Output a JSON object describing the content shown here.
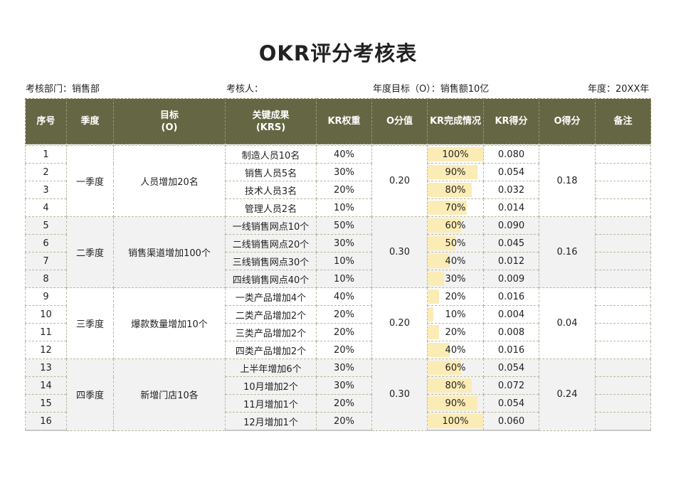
{
  "title": "OKR评分考核表",
  "meta": {
    "dept": "考核部门：销售部",
    "assessor": "考核人：",
    "goal": "年度目标（O）：销售额10亿",
    "year": "年度：20XX年"
  },
  "headers": {
    "seq": "序号",
    "quarter": "季度",
    "objective_line1": "目标",
    "objective_line2": "(O)",
    "krs_line1": "关键成果",
    "krs_line2": "(KRS)",
    "weight": "KR权重",
    "o_score": "O分值",
    "completion": "KR完成情况",
    "kr_score": "KR得分",
    "o_result": "O得分",
    "note": "备注"
  },
  "groups": [
    {
      "quarter": "一季度",
      "objective": "人员增加20名",
      "o_score": "0.20",
      "o_result": "0.18",
      "rows": [
        {
          "seq": "1",
          "kr": "制造人员10名",
          "weight": "40%",
          "completion": "100%",
          "pct": 100,
          "kr_score": "0.080",
          "note": ""
        },
        {
          "seq": "2",
          "kr": "销售人员5名",
          "weight": "30%",
          "completion": "90%",
          "pct": 90,
          "kr_score": "0.054",
          "note": ""
        },
        {
          "seq": "3",
          "kr": "技术人员3名",
          "weight": "20%",
          "completion": "80%",
          "pct": 80,
          "kr_score": "0.032",
          "note": ""
        },
        {
          "seq": "4",
          "kr": "管理人员2名",
          "weight": "10%",
          "completion": "70%",
          "pct": 70,
          "kr_score": "0.014",
          "note": ""
        }
      ]
    },
    {
      "quarter": "二季度",
      "objective": "销售渠道增加100个",
      "o_score": "0.30",
      "o_result": "0.16",
      "rows": [
        {
          "seq": "5",
          "kr": "一线销售网点10个",
          "weight": "50%",
          "completion": "60%",
          "pct": 60,
          "kr_score": "0.090",
          "note": ""
        },
        {
          "seq": "6",
          "kr": "二线销售网点20个",
          "weight": "30%",
          "completion": "50%",
          "pct": 50,
          "kr_score": "0.045",
          "note": ""
        },
        {
          "seq": "7",
          "kr": "三线销售网点30个",
          "weight": "10%",
          "completion": "40%",
          "pct": 40,
          "kr_score": "0.012",
          "note": ""
        },
        {
          "seq": "8",
          "kr": "四线销售网点40个",
          "weight": "10%",
          "completion": "30%",
          "pct": 30,
          "kr_score": "0.009",
          "note": ""
        }
      ]
    },
    {
      "quarter": "三季度",
      "objective": "爆款数量增加10个",
      "o_score": "0.20",
      "o_result": "0.04",
      "rows": [
        {
          "seq": "9",
          "kr": "一类产品增加4个",
          "weight": "40%",
          "completion": "20%",
          "pct": 20,
          "kr_score": "0.016",
          "note": ""
        },
        {
          "seq": "10",
          "kr": "二类产品增加2个",
          "weight": "20%",
          "completion": "10%",
          "pct": 10,
          "kr_score": "0.004",
          "note": ""
        },
        {
          "seq": "11",
          "kr": "三类产品增加2个",
          "weight": "20%",
          "completion": "20%",
          "pct": 20,
          "kr_score": "0.008",
          "note": ""
        },
        {
          "seq": "12",
          "kr": "四类产品增加2个",
          "weight": "20%",
          "completion": "40%",
          "pct": 40,
          "kr_score": "0.016",
          "note": ""
        }
      ]
    },
    {
      "quarter": "四季度",
      "objective": "新增门店10各",
      "o_score": "0.30",
      "o_result": "0.24",
      "rows": [
        {
          "seq": "13",
          "kr": "上半年增加6个",
          "weight": "30%",
          "completion": "60%",
          "pct": 60,
          "kr_score": "0.054",
          "note": ""
        },
        {
          "seq": "14",
          "kr": "10月增加2个",
          "weight": "30%",
          "completion": "80%",
          "pct": 80,
          "kr_score": "0.072",
          "note": ""
        },
        {
          "seq": "15",
          "kr": "11月增加1个",
          "weight": "20%",
          "completion": "90%",
          "pct": 90,
          "kr_score": "0.054",
          "note": ""
        },
        {
          "seq": "16",
          "kr": "12月增加1个",
          "weight": "20%",
          "completion": "100%",
          "pct": 100,
          "kr_score": "0.060",
          "note": ""
        }
      ]
    }
  ],
  "colors": {
    "header_bg": "#656643",
    "bar_fill": "#fbecb6",
    "shade": "#f2f2f2"
  }
}
